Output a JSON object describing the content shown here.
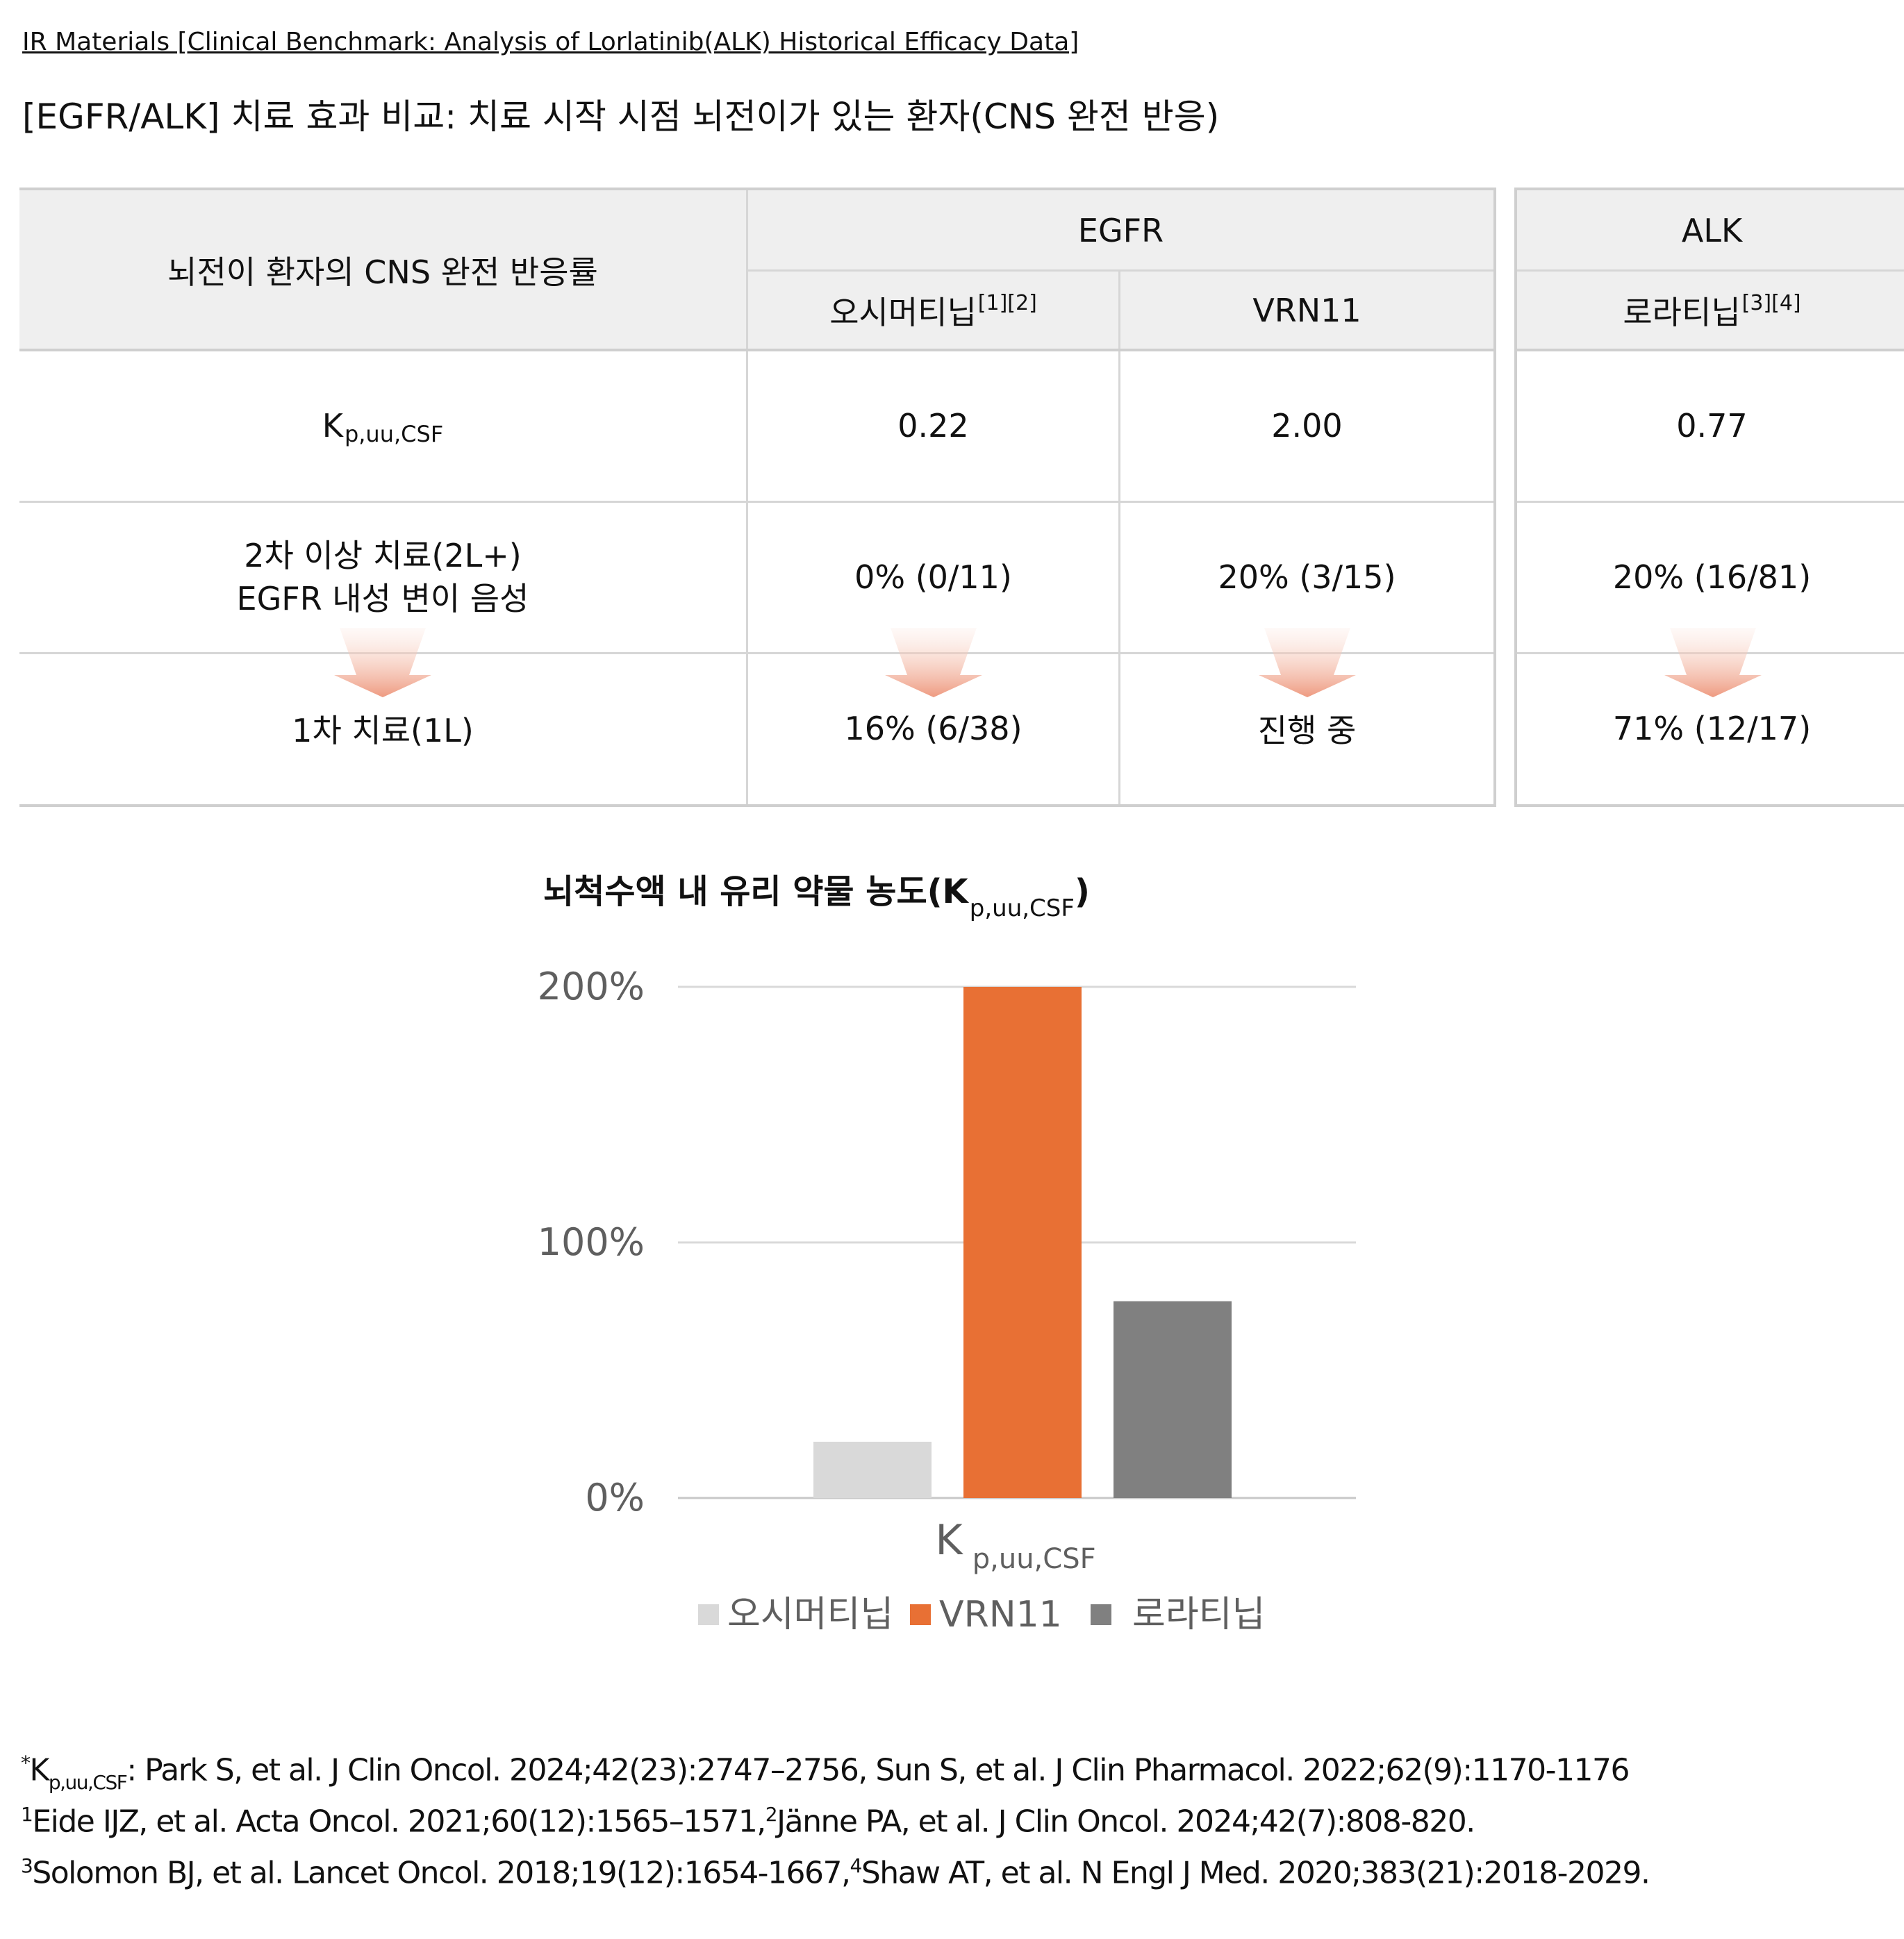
{
  "header": {
    "link": "IR Materials [Clinical Benchmark: Analysis of Lorlatinib(ALK) Historical Efficacy Data]",
    "title": "[EGFR/ALK] 치료 효과 비교: 치료 시작 시점 뇌전이가 있는 환자(CNS 완전 반응)"
  },
  "table": {
    "corner_label": "뇌전이 환자의 CNS 완전 반응률",
    "groups": {
      "egfr": "EGFR",
      "alk": "ALK"
    },
    "columns": {
      "osimertinib": {
        "name": "오시머티닙",
        "refs": "[1][2]"
      },
      "vrn11": {
        "name": "VRN11"
      },
      "lorlatinib": {
        "name": "로라티닙",
        "refs": "[3][4]"
      }
    },
    "rows": {
      "kp": {
        "label_main": "K",
        "label_sub": "p,uu,CSF",
        "osimertinib": "0.22",
        "vrn11": "2.00",
        "lorlatinib": "0.77"
      },
      "second_line": {
        "label_line1": "2차 이상 치료(2L+)",
        "label_line2": "EGFR 내성 변이 음성",
        "osimertinib": "0% (0/11)",
        "vrn11": "20% (3/15)",
        "lorlatinib": "20% (16/81)"
      },
      "first_line": {
        "label": "1차 치료(1L)",
        "osimertinib": "16% (6/38)",
        "vrn11": "진행 중",
        "lorlatinib": "71% (12/17)"
      }
    }
  },
  "chart_title": {
    "main": "뇌척수액 내 유리 약물 농도(K",
    "sub": "p,uu,CSF",
    "close": ")"
  },
  "chart_data": {
    "type": "bar",
    "title": "뇌척수액 내 유리 약물 농도(Kp,uu,CSF)",
    "categories": [
      "Kp,uu,CSF"
    ],
    "category_label": {
      "main": "K",
      "sub": "p,uu,CSF"
    },
    "series": [
      {
        "name": "오시머티닙",
        "values": [
          22
        ],
        "color": "#d9d9d9"
      },
      {
        "name": "VRN11",
        "values": [
          200
        ],
        "color": "#e87034"
      },
      {
        "name": "로라티닙",
        "values": [
          77
        ],
        "color": "#808080"
      }
    ],
    "yticks": [
      {
        "value": 0,
        "label": "0%"
      },
      {
        "value": 100,
        "label": "100%"
      },
      {
        "value": 200,
        "label": "200%"
      }
    ],
    "ylim": [
      0,
      200
    ],
    "grid": true,
    "legend_position": "bottom"
  },
  "footnotes": {
    "line1": {
      "marker": "*",
      "k": "K",
      "ksub": "p,uu,CSF",
      "text": ": Park S, et al. J Clin Oncol. 2024;42(23):2747–2756, Sun S, et al. J Clin Pharmacol. 2022;62(9):1170-1176"
    },
    "line2": {
      "m1": "1",
      "t1": "Eide IJZ, et al. Acta Oncol. 2021;60(12):1565–1571,",
      "m2": "2",
      "t2": "Jänne PA, et al. J Clin Oncol. 2024;42(7):808-820."
    },
    "line3": {
      "m1": "3",
      "t1": "Solomon BJ, et al. Lancet Oncol. 2018;19(12):1654-1667,",
      "m2": "4",
      "t2": "Shaw AT, et al. N Engl J Med. 2020;383(21):2018-2029."
    }
  },
  "colors": {
    "accent": "#e87034",
    "light_gray": "#d9d9d9",
    "dark_gray": "#808080",
    "header_bg": "#efefef",
    "arrow": "#f0a58c"
  }
}
